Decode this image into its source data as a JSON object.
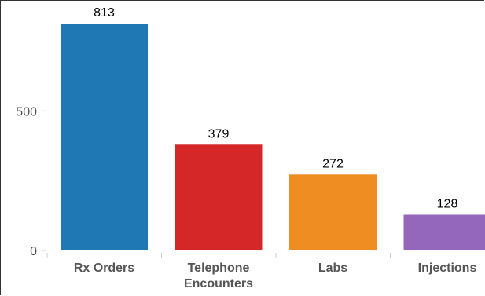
{
  "chart_data": {
    "type": "bar",
    "categories": [
      [
        "Rx Orders"
      ],
      [
        "Telephone",
        "Encounters"
      ],
      [
        "Labs"
      ],
      [
        "Injections"
      ]
    ],
    "values": [
      813,
      379,
      272,
      128
    ],
    "colors": [
      "#1f77b4",
      "#d62728",
      "#ef8c22",
      "#9467bd"
    ],
    "ylim": [
      0,
      813
    ],
    "yticks": [
      0,
      500
    ],
    "ytick_labels": [
      "0",
      "500"
    ],
    "data_labels": [
      "813",
      "379",
      "272",
      "128"
    ],
    "title": "",
    "xlabel": "",
    "ylabel": "",
    "grid": false,
    "legend": "none"
  }
}
